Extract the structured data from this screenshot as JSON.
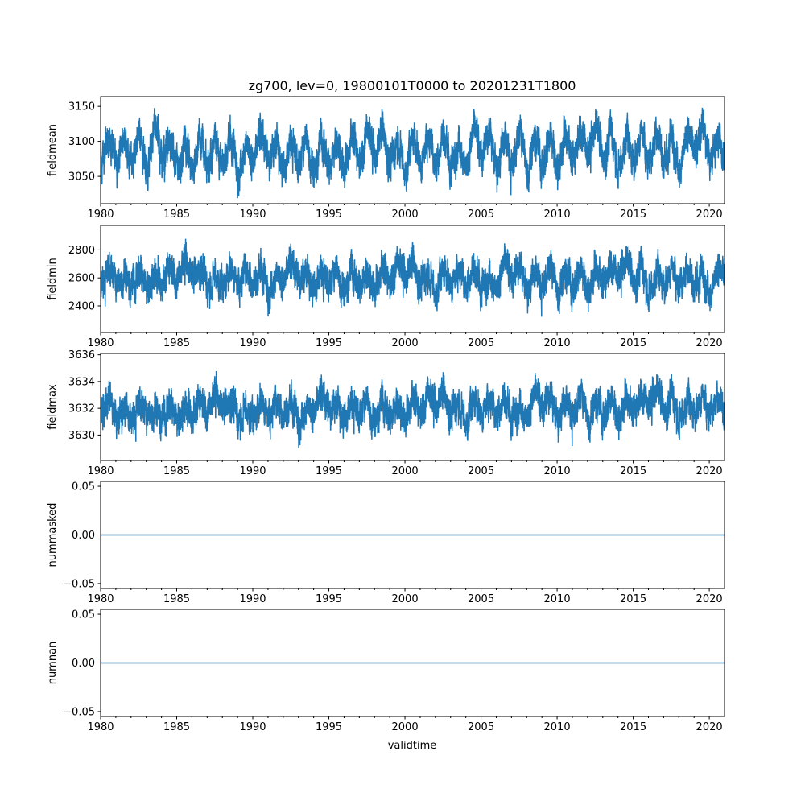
{
  "chart_data": {
    "type": "line",
    "title": "zg700, lev=0, 19800101T0000 to 20201231T1800",
    "xlabel": "validtime",
    "xlim": [
      1980,
      2021
    ],
    "x_ticks": [
      "1980",
      "1985",
      "1990",
      "1995",
      "2000",
      "2005",
      "2010",
      "2015",
      "2020"
    ],
    "minor_x_ticks": "yearly",
    "grid": false,
    "color": "#1f77b4",
    "panels": [
      {
        "ylabel": "fieldmean",
        "ylim": [
          3011,
          3164
        ],
        "y_ticks": [
          "3050",
          "3100",
          "3150"
        ],
        "y_tick_values": [
          3050,
          3100,
          3150
        ],
        "series_summary": {
          "mean": 3090,
          "seasonal_amplitude": 20,
          "noise": 18,
          "min": 3018,
          "max": 3158,
          "trend_per_decade": 3
        }
      },
      {
        "ylabel": "fieldmin",
        "ylim": [
          2210,
          2975
        ],
        "y_ticks": [
          "2400",
          "2600",
          "2800"
        ],
        "y_tick_values": [
          2400,
          2600,
          2800
        ],
        "series_summary": {
          "mean": 2620,
          "seasonal_amplitude": 60,
          "noise": 85,
          "min": 2235,
          "max": 2945,
          "trend_per_decade": 0
        }
      },
      {
        "ylabel": "fieldmax",
        "ylim": [
          3628.1,
          3636.1
        ],
        "y_ticks": [
          "3630",
          "3632",
          "3634",
          "3636"
        ],
        "y_tick_values": [
          3630,
          3632,
          3634,
          3636
        ],
        "series_summary": {
          "mean": 3632.2,
          "seasonal_amplitude": 0.6,
          "noise": 0.9,
          "min": 3628.5,
          "max": 3635.8,
          "trend_per_decade": 0.1
        }
      },
      {
        "ylabel": "nummasked",
        "ylim": [
          -0.055,
          0.055
        ],
        "y_ticks": [
          "−0.05",
          "0.00",
          "0.05"
        ],
        "y_tick_values": [
          -0.05,
          0,
          0.05
        ],
        "series_summary": {
          "constant": 0
        }
      },
      {
        "ylabel": "numnan",
        "ylim": [
          -0.055,
          0.055
        ],
        "y_ticks": [
          "−0.05",
          "0.00",
          "0.05"
        ],
        "y_tick_values": [
          -0.05,
          0,
          0.05
        ],
        "series_summary": {
          "constant": 0
        }
      }
    ]
  }
}
